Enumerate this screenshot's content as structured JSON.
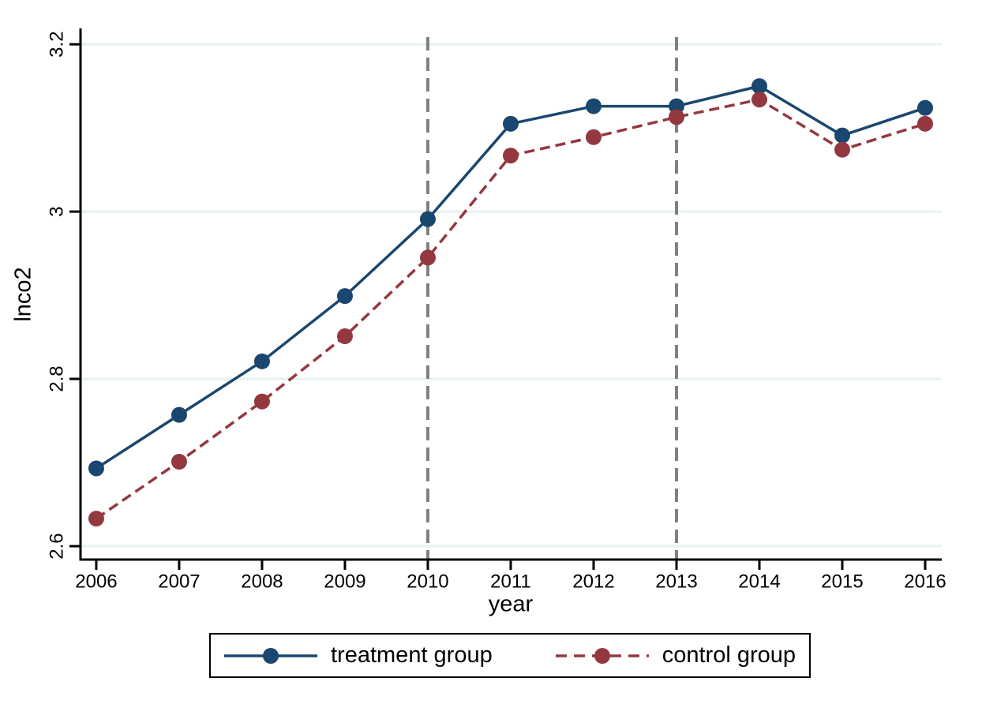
{
  "chart_data": {
    "type": "line",
    "title": "",
    "xlabel": "year",
    "ylabel": "lnco2",
    "x": [
      2006,
      2007,
      2008,
      2009,
      2010,
      2011,
      2012,
      2013,
      2014,
      2015,
      2016
    ],
    "series": [
      {
        "name": "treatment group",
        "color": "#1a476f",
        "line_style": "solid",
        "marker": "circle",
        "values": [
          2.693,
          2.757,
          2.821,
          2.899,
          2.991,
          3.105,
          3.126,
          3.126,
          3.15,
          3.091,
          3.124
        ]
      },
      {
        "name": "control group",
        "color": "#94383f",
        "line_style": "dashed",
        "marker": "circle",
        "values": [
          2.633,
          2.701,
          2.773,
          2.851,
          2.945,
          3.067,
          3.089,
          3.113,
          3.134,
          3.074,
          3.105
        ]
      }
    ],
    "vlines": [
      {
        "x": 2010,
        "color": "#808080",
        "style": "dashed"
      },
      {
        "x": 2013,
        "color": "#808080",
        "style": "dashed"
      }
    ],
    "xticks": {
      "values": [
        2006,
        2007,
        2008,
        2009,
        2010,
        2011,
        2012,
        2013,
        2014,
        2015,
        2016
      ],
      "labels": [
        "2006",
        "2007",
        "2008",
        "2009",
        "2010",
        "2011",
        "2012",
        "2013",
        "2014",
        "2015",
        "2016"
      ]
    },
    "yticks": {
      "values": [
        2.6,
        2.8,
        3.0,
        3.2
      ],
      "labels": [
        "2.6",
        "2.8",
        "3",
        "3.2"
      ]
    },
    "xlim": [
      2005.81,
      2016.2
    ],
    "ylim": [
      2.584,
      3.219
    ],
    "grid": "horizontal",
    "grid_color": "#e8f1f2",
    "axis_color": "#000000",
    "legend_position": "bottom-center"
  }
}
